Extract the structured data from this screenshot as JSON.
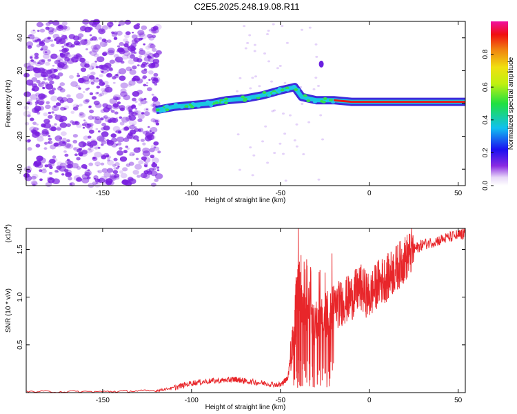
{
  "title": "C2E5.2025.248.19.08.R11",
  "colors": {
    "scatter": "#7a1fe0",
    "snr_line": "#e8262a",
    "ridge_low": "#1010e0",
    "ridge_mid": "#18c8e0",
    "ridge_high": "#e81818"
  },
  "chart_data": [
    {
      "type": "heatmap",
      "name": "spectrogram",
      "xlabel": "Height of straight line (km)",
      "ylabel": "Frequency (Hz)",
      "xlim": [
        -193,
        54
      ],
      "ylim": [
        -50,
        50
      ],
      "xticks": [
        -150,
        -100,
        -50,
        0,
        50
      ],
      "yticks": [
        -40,
        -20,
        0,
        20,
        40
      ],
      "xtick_labels": [
        "-150",
        "-100",
        "-50",
        "0",
        "50"
      ],
      "ytick_labels": [
        "-40",
        "-20",
        "0",
        "20",
        "40"
      ],
      "noise_region_x": [
        -193,
        -118
      ],
      "ridge": {
        "x": [
          -120,
          -110,
          -100,
          -90,
          -80,
          -70,
          -60,
          -50,
          -42,
          -38,
          -30,
          -20,
          -10,
          0,
          10,
          20,
          30,
          40,
          54
        ],
        "y": [
          -4,
          -2,
          -1,
          0,
          2,
          3,
          5,
          8,
          10,
          4,
          2,
          2,
          1,
          1,
          1,
          1,
          1,
          1,
          1
        ]
      },
      "colorbar": {
        "label": "Normalized spectral amplitude",
        "range": [
          0,
          1
        ],
        "ticks": [
          0.0,
          0.2,
          0.4,
          0.6,
          0.8
        ],
        "tick_labels": [
          "0.0",
          "0.2",
          "0.4",
          "0.6",
          "0.8"
        ]
      }
    },
    {
      "type": "line",
      "name": "snr",
      "xlabel": "Height of straight line (km)",
      "ylabel": "SNR (10 * v/v)",
      "scale_label": "(x10",
      "scale_exponent": "4",
      "xlim": [
        -193,
        54
      ],
      "ylim": [
        0,
        1.72
      ],
      "xticks": [
        -150,
        -100,
        -50,
        0,
        50
      ],
      "yticks": [
        0.5,
        1.0,
        1.5
      ],
      "xtick_labels": [
        "-150",
        "-100",
        "-50",
        "0",
        "50"
      ],
      "ytick_labels": [
        "0.5",
        "1.0",
        "1.5"
      ],
      "series": [
        {
          "name": "SNR",
          "x": [
            -193,
            -150,
            -120,
            -110,
            -100,
            -90,
            -80,
            -75,
            -70,
            -60,
            -50,
            -46,
            -42,
            -40,
            -38,
            -35,
            -30,
            -25,
            -20,
            -15,
            -10,
            -5,
            0,
            5,
            10,
            15,
            20,
            25,
            30,
            40,
            50,
            54
          ],
          "y": [
            0.01,
            0.01,
            0.02,
            0.05,
            0.1,
            0.12,
            0.13,
            0.14,
            0.12,
            0.1,
            0.08,
            0.15,
            0.6,
            1.2,
            0.8,
            0.9,
            0.7,
            0.8,
            0.9,
            0.95,
            1.0,
            1.1,
            1.0,
            1.15,
            1.2,
            1.3,
            1.4,
            1.5,
            1.55,
            1.6,
            1.65,
            1.66
          ]
        }
      ]
    }
  ]
}
